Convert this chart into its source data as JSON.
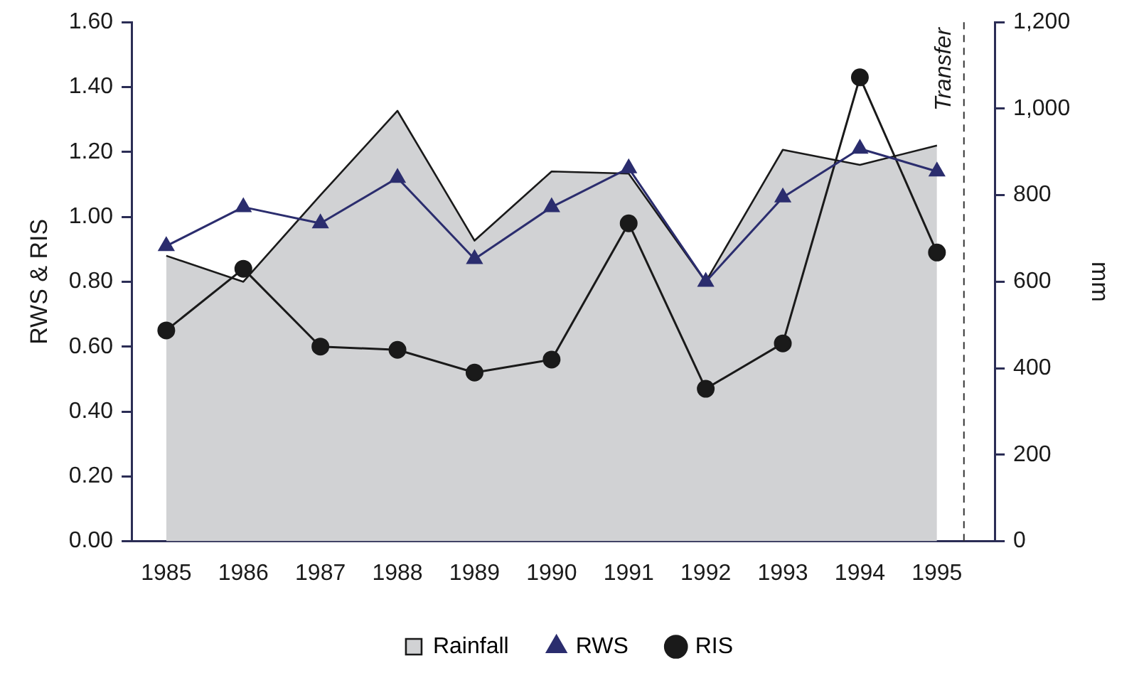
{
  "chart_data": {
    "type": "line",
    "ylabel": "RWS & RIS",
    "y2label": "mm",
    "x": [
      1985,
      1986,
      1987,
      1988,
      1989,
      1990,
      1991,
      1992,
      1993,
      1994,
      1995
    ],
    "xlim": [
      1984.55,
      1995.75
    ],
    "xticks": [
      1985,
      1986,
      1987,
      1988,
      1989,
      1990,
      1991,
      1992,
      1993,
      1994,
      1995
    ],
    "ylim": [
      0,
      1.6
    ],
    "yticks": [
      {
        "value": 0,
        "label": "0.00"
      },
      {
        "value": 0.2,
        "label": "0.20"
      },
      {
        "value": 0.4,
        "label": "0.40"
      },
      {
        "value": 0.6,
        "label": "0.60"
      },
      {
        "value": 0.8,
        "label": "0.80"
      },
      {
        "value": 1,
        "label": "1.00"
      },
      {
        "value": 1.2,
        "label": "1.20"
      },
      {
        "value": 1.4,
        "label": "1.40"
      },
      {
        "value": 1.6,
        "label": "1.60"
      }
    ],
    "y2lim": [
      0,
      1200
    ],
    "y2ticks": [
      0,
      200,
      400,
      600,
      800,
      {
        "value": 1000,
        "label": "1,000"
      },
      {
        "value": 1200,
        "label": "1,200"
      }
    ],
    "series": [
      {
        "name": "Rainfall",
        "type": "area",
        "axis": "y2",
        "color": "#d1d2d4",
        "marker": "none",
        "values": [
          660,
          600,
          800,
          995,
          695,
          855,
          850,
          600,
          905,
          870,
          915
        ]
      },
      {
        "name": "RWS",
        "type": "line",
        "color": "#2b2d6e",
        "marker": "triangle",
        "values": [
          0.91,
          1.03,
          0.98,
          1.12,
          0.87,
          1.03,
          1.15,
          0.8,
          1.06,
          1.21,
          1.14
        ]
      },
      {
        "name": "RIS",
        "type": "line",
        "color": "#1a1a1a",
        "marker": "circle",
        "values": [
          0.65,
          0.84,
          0.6,
          0.59,
          0.52,
          0.56,
          0.98,
          0.47,
          0.61,
          1.43,
          0.89
        ]
      }
    ],
    "ref_lines": [
      {
        "axis": "x",
        "value": 1995.35,
        "label": "Transfer",
        "line_style": "dashed"
      }
    ],
    "grid": false,
    "legend": "bottom"
  }
}
